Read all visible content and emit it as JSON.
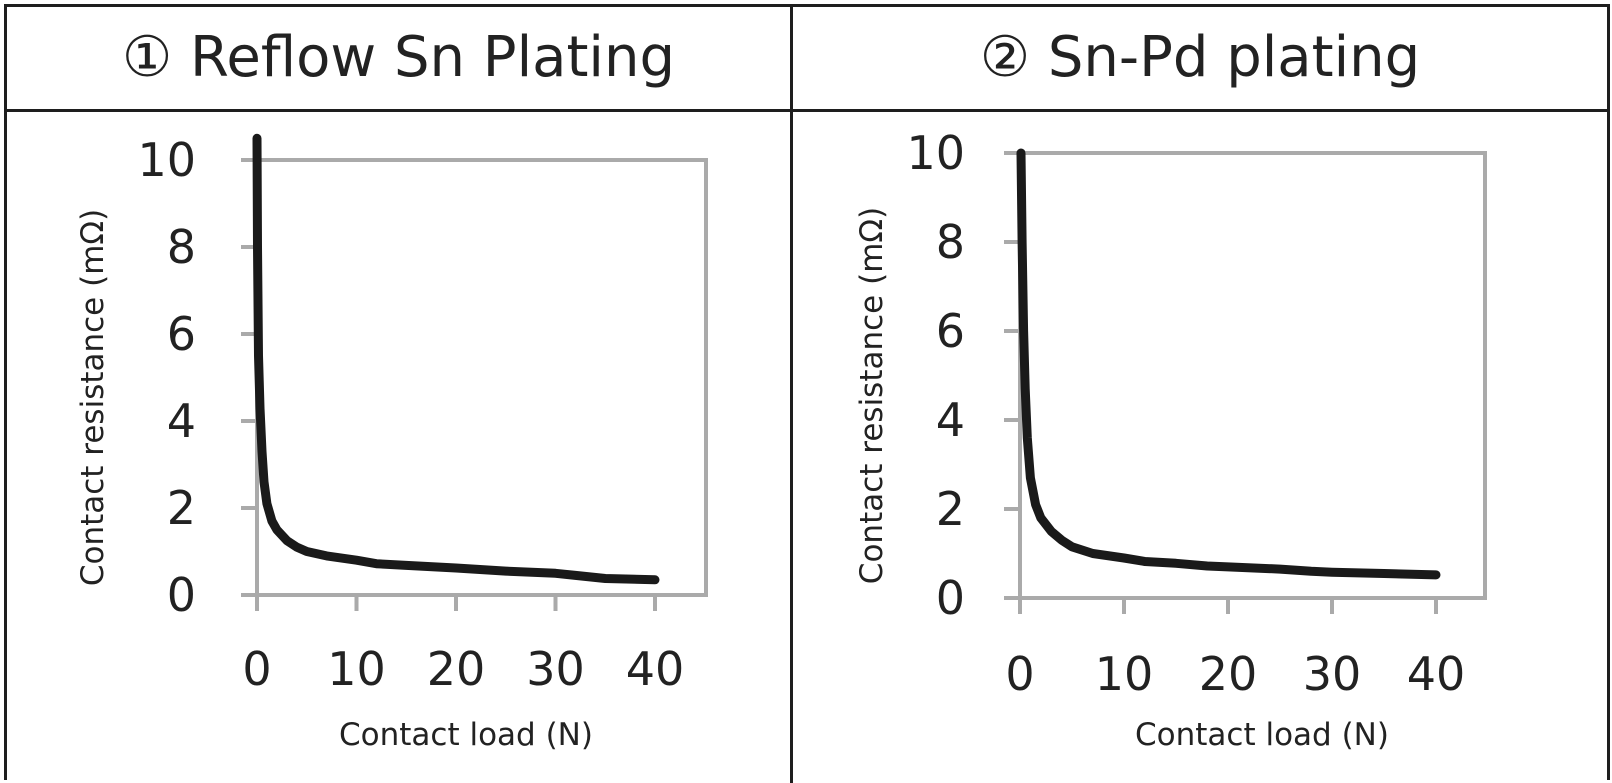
{
  "panels": [
    {
      "number_glyph": "①",
      "title": "Reflow Sn Plating"
    },
    {
      "number_glyph": "②",
      "title": "Sn-Pd plating"
    }
  ],
  "colors": {
    "curve": "#1a1a1a",
    "frame": "#aaaaaa",
    "text": "#222222",
    "border": "#1e1e1e"
  },
  "chart_data": [
    {
      "type": "line",
      "title": "① Reflow Sn Plating",
      "xlabel": "Contact load (N)",
      "ylabel": "Contact resistance (mΩ)",
      "xlim": [
        0,
        40
      ],
      "ylim": [
        0,
        10
      ],
      "xticks": [
        0,
        10,
        20,
        30,
        40
      ],
      "yticks": [
        0,
        2,
        4,
        6,
        8,
        10
      ],
      "grid": false,
      "x": [
        0,
        0.05,
        0.15,
        0.3,
        0.5,
        0.7,
        1,
        1.5,
        2,
        3,
        4,
        5,
        7,
        10,
        12,
        15,
        20,
        25,
        30,
        32,
        35,
        40
      ],
      "y": [
        10.5,
        8,
        5.5,
        4.3,
        3.3,
        2.6,
        2.1,
        1.7,
        1.5,
        1.25,
        1.1,
        1.0,
        0.9,
        0.8,
        0.72,
        0.68,
        0.62,
        0.55,
        0.5,
        0.45,
        0.38,
        0.35
      ]
    },
    {
      "type": "line",
      "title": "② Sn-Pd plating",
      "xlabel": "Contact load (N)",
      "ylabel": "Contact resistance (mΩ)",
      "xlim": [
        0,
        40
      ],
      "ylim": [
        0,
        10
      ],
      "xticks": [
        0,
        10,
        20,
        30,
        40
      ],
      "yticks": [
        0,
        2,
        4,
        6,
        8,
        10
      ],
      "grid": false,
      "x": [
        0.1,
        0.2,
        0.35,
        0.5,
        0.7,
        1,
        1.5,
        2,
        3,
        4,
        5,
        7,
        10,
        12,
        15,
        18,
        20,
        25,
        28,
        30,
        35,
        40
      ],
      "y": [
        10,
        8,
        6,
        4.7,
        3.6,
        2.7,
        2.1,
        1.8,
        1.5,
        1.3,
        1.15,
        1.0,
        0.9,
        0.82,
        0.78,
        0.72,
        0.7,
        0.65,
        0.6,
        0.58,
        0.55,
        0.52
      ]
    }
  ]
}
